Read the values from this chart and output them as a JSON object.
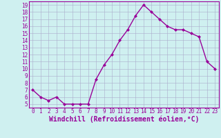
{
  "x": [
    0,
    1,
    2,
    3,
    4,
    5,
    6,
    7,
    8,
    9,
    10,
    11,
    12,
    13,
    14,
    15,
    16,
    17,
    18,
    19,
    20,
    21,
    22,
    23
  ],
  "y": [
    7,
    6,
    5.5,
    6,
    5,
    5,
    5,
    5,
    8.5,
    10.5,
    12,
    14,
    15.5,
    17.5,
    19,
    18,
    17,
    16,
    15.5,
    15.5,
    15,
    14.5,
    11,
    10
  ],
  "line_color": "#990099",
  "marker": "D",
  "marker_size": 2,
  "bg_color": "#cff0f0",
  "grid_color": "#aaaacc",
  "xlabel": "Windchill (Refroidissement éolien,°C)",
  "xlabel_fontsize": 7,
  "ytick_labels": [
    "5",
    "6",
    "7",
    "8",
    "9",
    "10",
    "11",
    "12",
    "13",
    "14",
    "15",
    "16",
    "17",
    "18",
    "19"
  ],
  "ytick_values": [
    5,
    6,
    7,
    8,
    9,
    10,
    11,
    12,
    13,
    14,
    15,
    16,
    17,
    18,
    19
  ],
  "xtick_labels": [
    "0",
    "1",
    "2",
    "3",
    "4",
    "5",
    "6",
    "7",
    "8",
    "9",
    "10",
    "11",
    "12",
    "13",
    "14",
    "15",
    "16",
    "17",
    "18",
    "19",
    "20",
    "21",
    "22",
    "23"
  ],
  "xtick_values": [
    0,
    1,
    2,
    3,
    4,
    5,
    6,
    7,
    8,
    9,
    10,
    11,
    12,
    13,
    14,
    15,
    16,
    17,
    18,
    19,
    20,
    21,
    22,
    23
  ],
  "ylim": [
    4.5,
    19.5
  ],
  "xlim": [
    -0.5,
    23.5
  ],
  "tick_fontsize": 5.5,
  "spine_color": "#990099",
  "linewidth": 1.0
}
